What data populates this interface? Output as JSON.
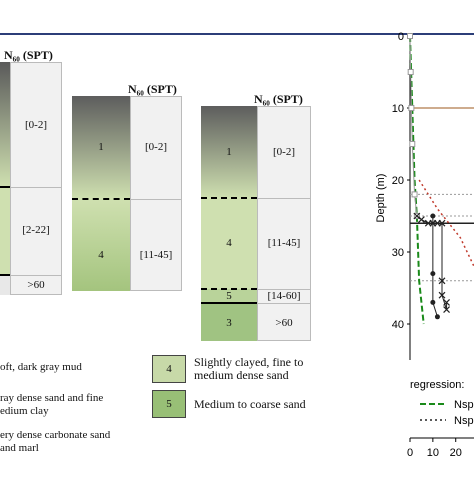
{
  "header": "N₆₀ (SPT)",
  "profiles": [
    {
      "layers": [
        {
          "unit": "",
          "range": "[0-2]"
        },
        {
          "unit": "",
          "range": "[2-22]"
        },
        {
          "unit": "",
          "range": ">60"
        }
      ]
    },
    {
      "layers": [
        {
          "unit": "1",
          "range": "[0-2]"
        },
        {
          "unit": "4",
          "range": "[11-45]"
        }
      ]
    },
    {
      "layers": [
        {
          "unit": "1",
          "range": "[0-2]"
        },
        {
          "unit": "4",
          "range": "[11-45]"
        },
        {
          "unit": "5",
          "range": "[14-60]"
        },
        {
          "unit": "3",
          "range": ">60"
        }
      ]
    }
  ],
  "legend": [
    {
      "text": "oft, dark gray mud"
    },
    {
      "text": "ray dense sand and fine\nedium clay"
    },
    {
      "text": "ery dense carbonate sand\nand marl"
    },
    {
      "unit": "4",
      "text": "Slightly clayed, fine to\nmedium dense sand",
      "color": "#c7d9a8"
    },
    {
      "unit": "5",
      "text": "Medium to coarse sand",
      "color": "#98bf76"
    }
  ],
  "chart_data": {
    "type": "scatter",
    "ylabel": "Depth (m)",
    "y_ticks": [
      "0",
      "10",
      "20",
      "30",
      "40"
    ],
    "x_ticks": [
      "0",
      "10",
      "20"
    ],
    "ylim": [
      0,
      45
    ],
    "xlim": [
      0,
      28
    ],
    "regression_title": "regression:",
    "regression_items": [
      "Nsp",
      "Nsp"
    ],
    "colors": {
      "dark": "#222222",
      "green": "#1a8a1a",
      "red": "#c0392b",
      "brown": "#b07a4a",
      "gray": "#999999"
    },
    "series": [
      {
        "x": [
          0,
          0.3,
          0.6,
          1,
          2,
          3
        ],
        "y": [
          0,
          5,
          10,
          15,
          22,
          25
        ]
      },
      {
        "x": [
          3,
          5,
          8,
          10,
          12,
          14,
          14,
          14,
          16,
          16
        ],
        "y": [
          25,
          25.5,
          26,
          26,
          26,
          26,
          34,
          36,
          38,
          37
        ]
      },
      {
        "x": [
          10,
          10,
          10,
          12
        ],
        "y": [
          25,
          33,
          37,
          39
        ]
      }
    ]
  }
}
